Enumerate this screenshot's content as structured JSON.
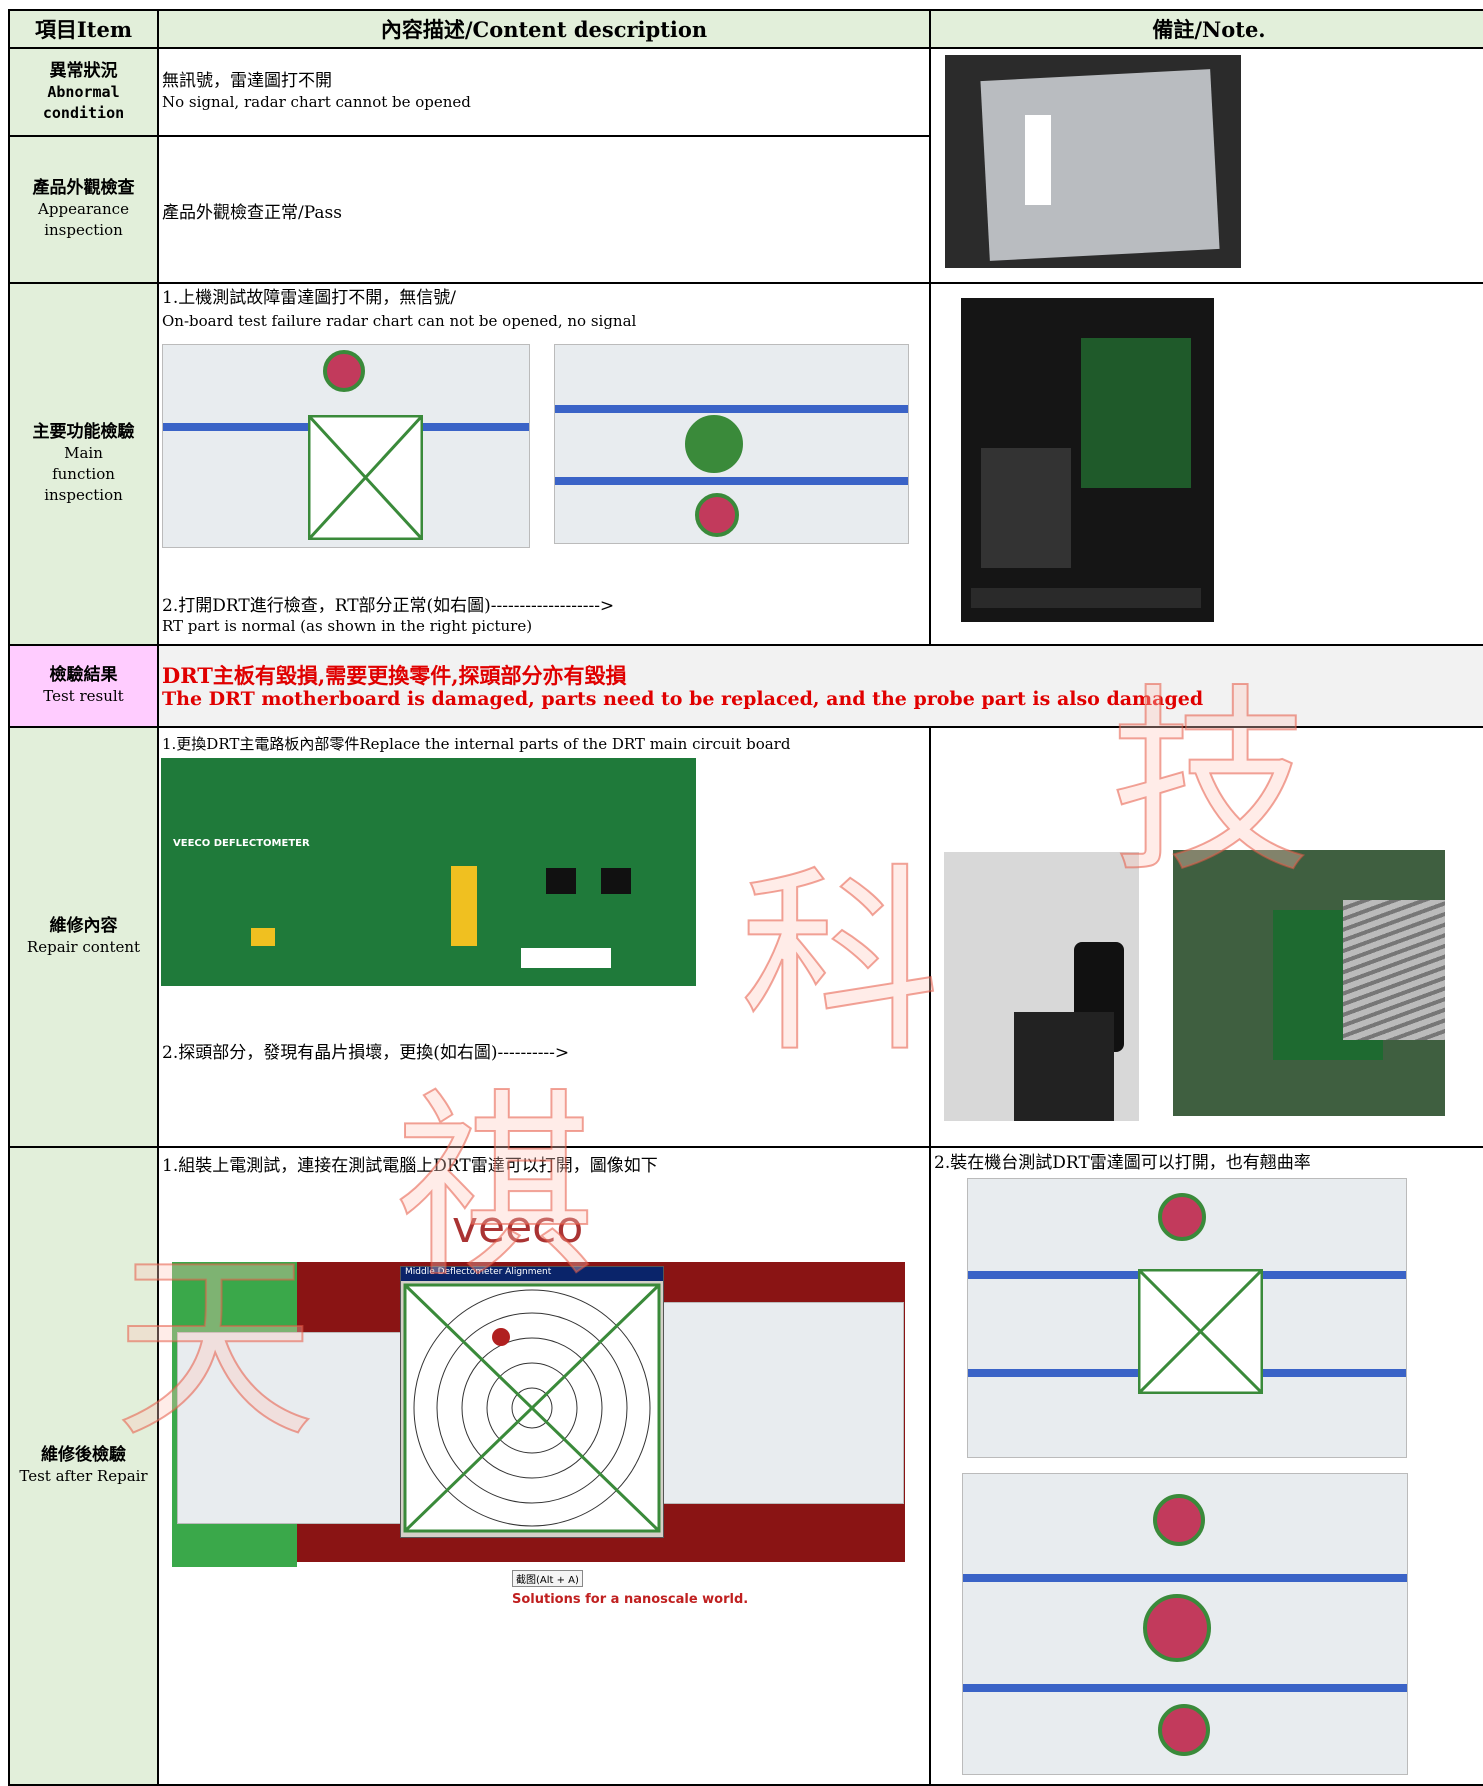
{
  "header": {
    "item": "項目Item",
    "content": "內容描述/Content description",
    "note": "備註/Note."
  },
  "rows": [
    {
      "zh": "異常狀況",
      "en": "Abnormal condition",
      "lines": [
        "無訊號，雷達圖打不開",
        "No signal, radar chart cannot be opened"
      ]
    },
    {
      "zh": "產品外觀檢查",
      "en": "Appearance inspection",
      "lines": [
        "產品外觀檢查正常/Pass"
      ]
    },
    {
      "zh": "主要功能檢驗",
      "en": "Main function inspection",
      "lines": [
        "1.上機測試故障雷達圖打不開，無信號/",
        "On-board test failure radar chart can not be opened, no signal",
        "2.打開DRT進行檢查，RT部分正常(如右圖)------------------->",
        "RT part is normal (as shown in the right picture)"
      ]
    },
    {
      "zh": "檢驗結果",
      "en": "Test result",
      "lines": [
        "DRT主板有毀損,需要更換零件,探頭部分亦有毀損",
        "The DRT motherboard is damaged, parts need to be replaced, and the probe part is also damaged"
      ]
    },
    {
      "zh": "維修內容",
      "en": "Repair content",
      "lines": [
        "1.更換DRT主電路板內部零件Replace the internal parts of the DRT main circuit board",
        "2.探頭部分，發現有晶片損壞，更換(如右圖)---------->"
      ]
    },
    {
      "zh": "維修後檢驗",
      "en": "Test after Repair",
      "lines": [
        "1.組裝上電測試，連接在測試電腦上DRT雷達可以打開，圖像如下"
      ],
      "note": "2.裝在機台測試DRT雷達圖可以打開，也有翹曲率"
    }
  ],
  "images": {
    "board_label": "VEECO DEFLECTOMETER",
    "brand": "veeco",
    "window_title": "Middle Deflectometer Alignment",
    "slogan": "Solutions for a nanoscale world.",
    "capture": "截图(Alt + A)"
  },
  "watermark": [
    "天",
    "祺",
    "科",
    "技"
  ]
}
